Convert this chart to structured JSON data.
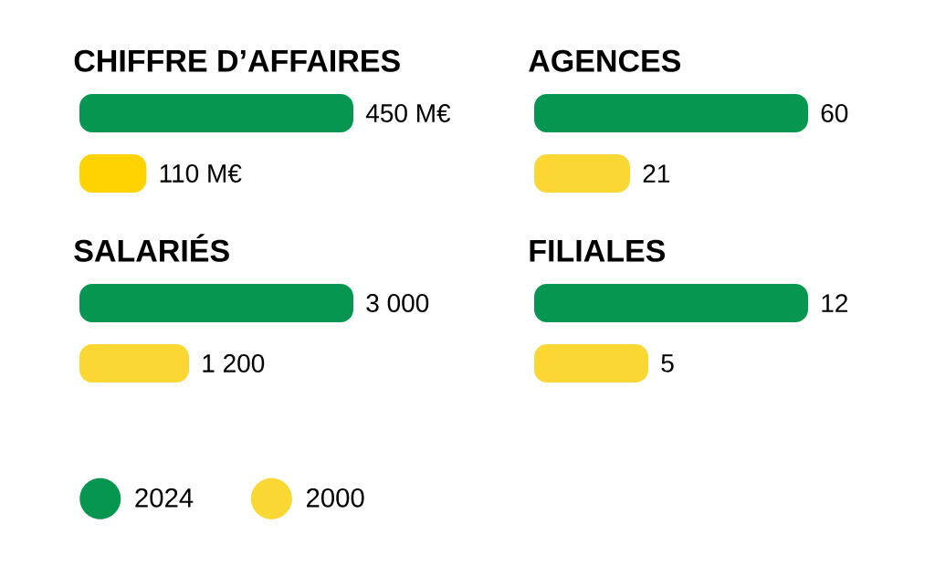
{
  "chart_data": [
    {
      "type": "bar",
      "title": "CHIFFRE D’AFFAIRES",
      "orientation": "horizontal",
      "categories": [
        null
      ],
      "series": [
        {
          "color": "#069650",
          "values": [
            450
          ],
          "value_labels": [
            "450 M€"
          ]
        },
        {
          "color": "#ffd300",
          "values": [
            110
          ],
          "value_labels": [
            "110 M€"
          ]
        }
      ]
    },
    {
      "type": "bar",
      "title": "AGENCES",
      "orientation": "horizontal",
      "categories": [
        null
      ],
      "series": [
        {
          "color": "#069650",
          "values": [
            60
          ],
          "value_labels": [
            "60"
          ]
        },
        {
          "color": "#fbd733",
          "values": [
            21
          ],
          "value_labels": [
            "21"
          ]
        }
      ]
    },
    {
      "type": "bar",
      "title": "SALARIÉS",
      "orientation": "horizontal",
      "categories": [
        null
      ],
      "legend": "bottom left",
      "series": [
        {
          "name": "2024",
          "color": "#069650",
          "values": [
            3000
          ],
          "value_labels": [
            "3 000"
          ]
        },
        {
          "name": "2000",
          "color": "#fbd733",
          "values": [
            1200
          ],
          "value_labels": [
            "1 200"
          ]
        }
      ]
    },
    {
      "type": "bar",
      "title": "FILIALES",
      "orientation": "horizontal",
      "categories": [
        null
      ],
      "series": [
        {
          "color": "#069650",
          "values": [
            12
          ],
          "value_labels": [
            "12"
          ]
        },
        {
          "color": "#fbd733",
          "values": [
            5
          ],
          "value_labels": [
            "5"
          ]
        }
      ]
    }
  ]
}
